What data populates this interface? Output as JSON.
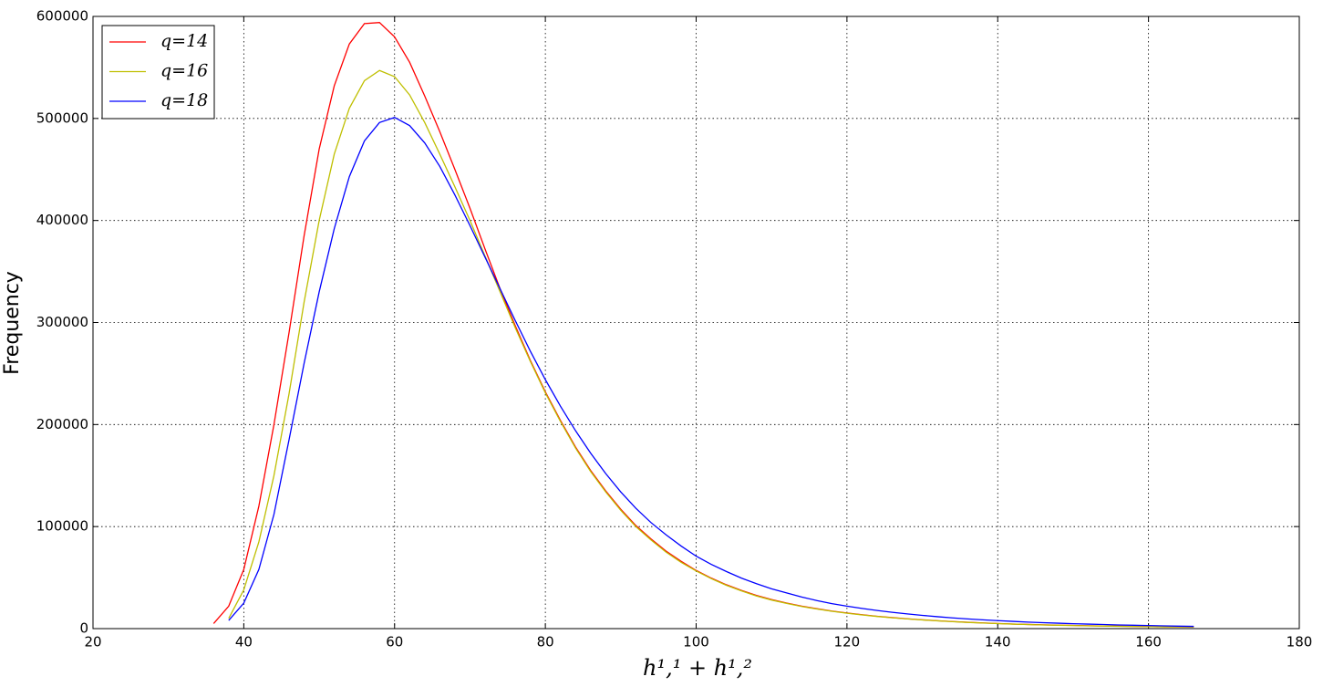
{
  "chart_data": {
    "type": "line",
    "x_label": "h¹,¹ + h¹,²",
    "y_label": "Frequency",
    "x": [
      36,
      38,
      40,
      42,
      44,
      46,
      48,
      50,
      52,
      54,
      56,
      58,
      60,
      62,
      64,
      66,
      68,
      70,
      72,
      74,
      76,
      78,
      80,
      82,
      84,
      86,
      88,
      90,
      92,
      94,
      96,
      98,
      100,
      102,
      104,
      106,
      108,
      110,
      112,
      114,
      116,
      118,
      120,
      122,
      124,
      126,
      128,
      130,
      132,
      134,
      136,
      138,
      140,
      142,
      144,
      146,
      148,
      150,
      152,
      154,
      156,
      158,
      160,
      162,
      164,
      166
    ],
    "series": [
      {
        "name": "q=14",
        "color": "#ff0000",
        "values": [
          5000,
          22000,
          58000,
          120000,
          200000,
          290000,
          385000,
          470000,
          532000,
          573000,
          593000,
          594000,
          580000,
          555000,
          522000,
          487000,
          450000,
          412000,
          372000,
          333000,
          297000,
          263000,
          232000,
          204000,
          178000,
          155000,
          135000,
          117000,
          101000,
          88000,
          76000,
          66000,
          57000,
          49500,
          43000,
          37500,
          32500,
          28500,
          25000,
          22000,
          19500,
          17200,
          15300,
          13600,
          12100,
          10800,
          9600,
          8600,
          7700,
          6900,
          6200,
          5600,
          5000,
          4500,
          4100,
          3700,
          3400,
          3100,
          2800,
          2600,
          2400,
          2200,
          2000,
          1800,
          1700,
          1600
        ]
      },
      {
        "name": "q=16",
        "color": "#bfbf00",
        "values": [
          null,
          10000,
          38000,
          85000,
          150000,
          230000,
          320000,
          400000,
          465000,
          510000,
          537000,
          547000,
          541000,
          523000,
          496000,
          465000,
          433000,
          400000,
          365000,
          330000,
          295000,
          262000,
          231000,
          203000,
          177000,
          154000,
          134000,
          116000,
          100000,
          87000,
          75000,
          65000,
          56500,
          49000,
          42500,
          37000,
          32000,
          28000,
          24700,
          21700,
          19200,
          17000,
          15100,
          13400,
          11900,
          10600,
          9500,
          8500,
          7600,
          6800,
          6100,
          5500,
          4900,
          4400,
          4000,
          3600,
          3300,
          3000,
          2700,
          2500,
          2300,
          2100,
          1900,
          1750,
          1650,
          1550
        ]
      },
      {
        "name": "q=18",
        "color": "#0000ff",
        "values": [
          null,
          8000,
          25000,
          58000,
          112000,
          185000,
          260000,
          330000,
          392000,
          443000,
          478000,
          496000,
          501000,
          493000,
          476000,
          453000,
          425000,
          395000,
          364000,
          333000,
          302000,
          272000,
          244000,
          218000,
          194000,
          172000,
          152000,
          134000,
          118000,
          104000,
          92000,
          81000,
          71000,
          63000,
          56000,
          49500,
          44000,
          39000,
          35000,
          31000,
          27500,
          24500,
          22000,
          19800,
          17800,
          16000,
          14400,
          13000,
          11700,
          10500,
          9500,
          8600,
          7800,
          7100,
          6400,
          5800,
          5300,
          4800,
          4400,
          4000,
          3600,
          3300,
          3000,
          2700,
          2400,
          2200
        ]
      }
    ],
    "xlim": [
      20,
      180
    ],
    "xticks": [
      20,
      40,
      60,
      80,
      100,
      120,
      140,
      160,
      180
    ],
    "ylim": [
      0,
      600000
    ],
    "yticks": [
      0,
      100000,
      200000,
      300000,
      400000,
      500000,
      600000
    ],
    "grid": true,
    "legend": "upper left"
  }
}
